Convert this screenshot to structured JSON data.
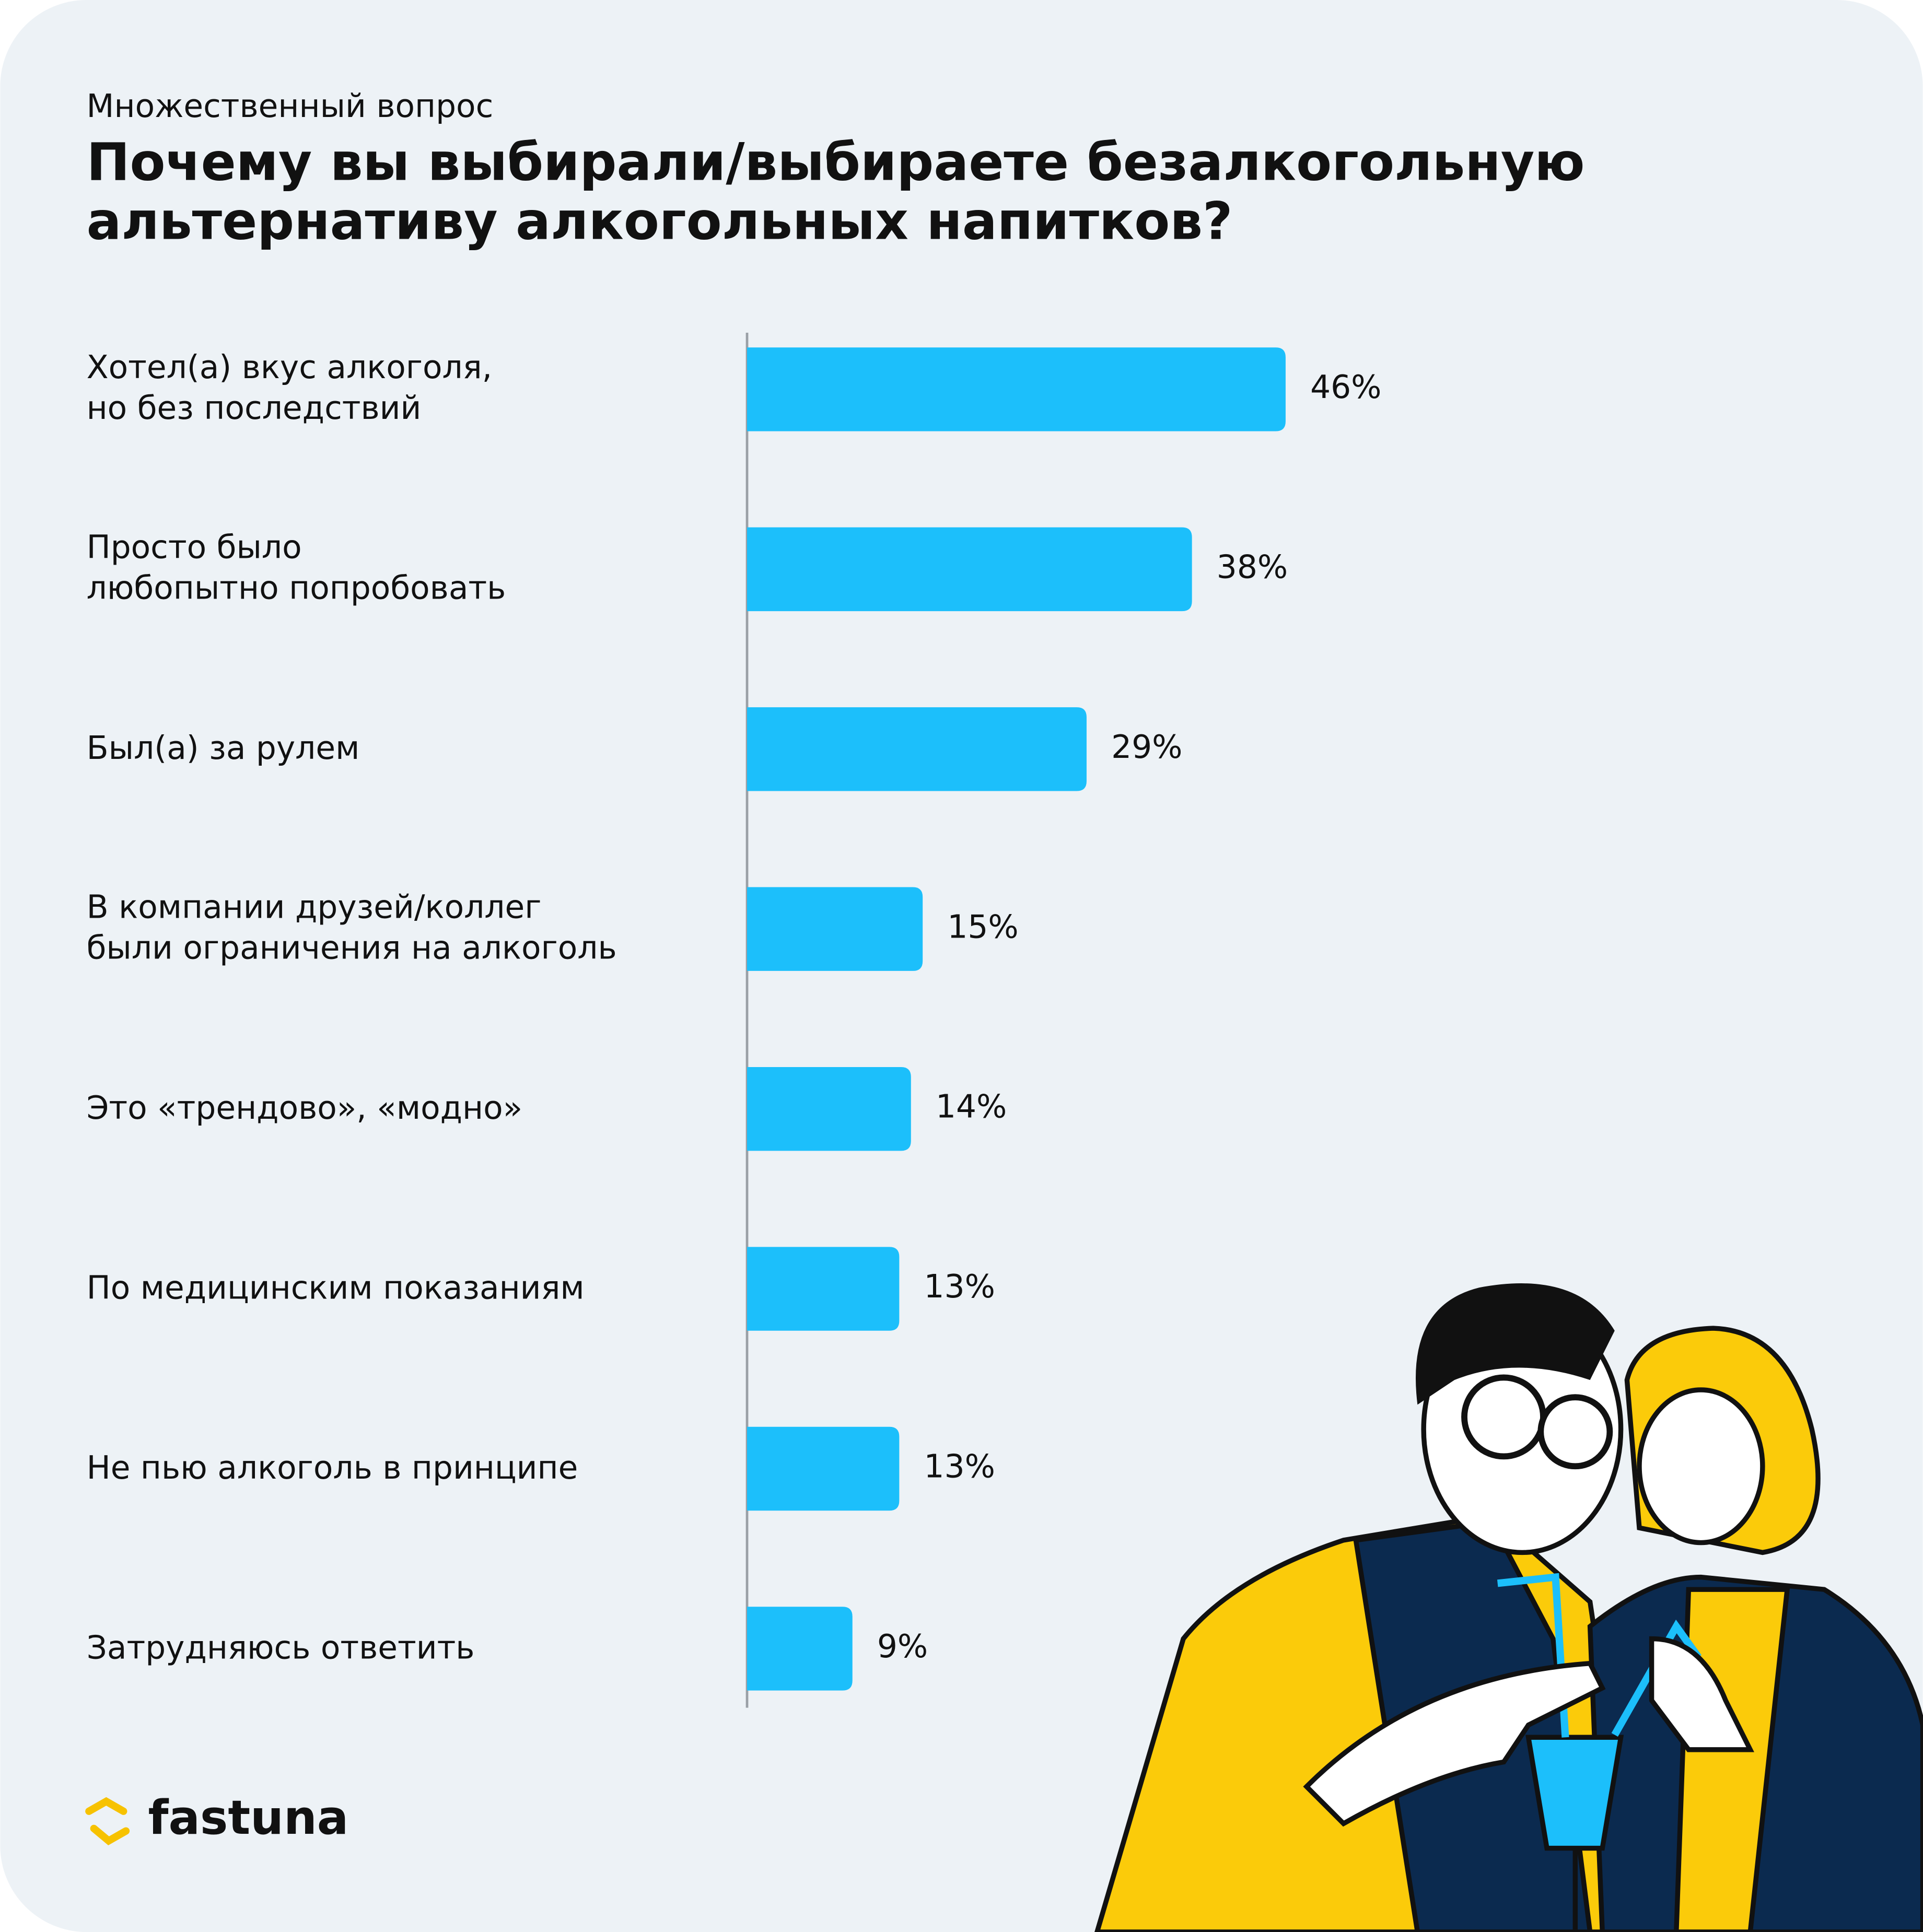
{
  "chart_data": {
    "type": "bar",
    "orientation": "horizontal",
    "subtitle": "Множественный вопрос",
    "title": "Почему вы выбирали/выбираете безалкогольную\nальтернативу алкогольных напитков?",
    "categories": [
      "Хотел(а) вкус алкоголя,\nно без последствий",
      "Просто было\nлюбопытно попробовать",
      "Был(а) за рулем",
      "В компании друзей/коллег\nбыли ограничения на алкоголь",
      "Это «трендово», «модно»",
      "По медицинским показаниям",
      "Не пью алкоголь в принципе",
      "Затрудняюсь ответить"
    ],
    "values": [
      46,
      38,
      29,
      15,
      14,
      13,
      13,
      9
    ],
    "value_labels": [
      "46%",
      "38%",
      "29%",
      "15%",
      "14%",
      "13%",
      "13%",
      "9%"
    ],
    "color": "#1cbffb",
    "xlim": [
      0,
      50
    ],
    "brand": "fastuna"
  }
}
